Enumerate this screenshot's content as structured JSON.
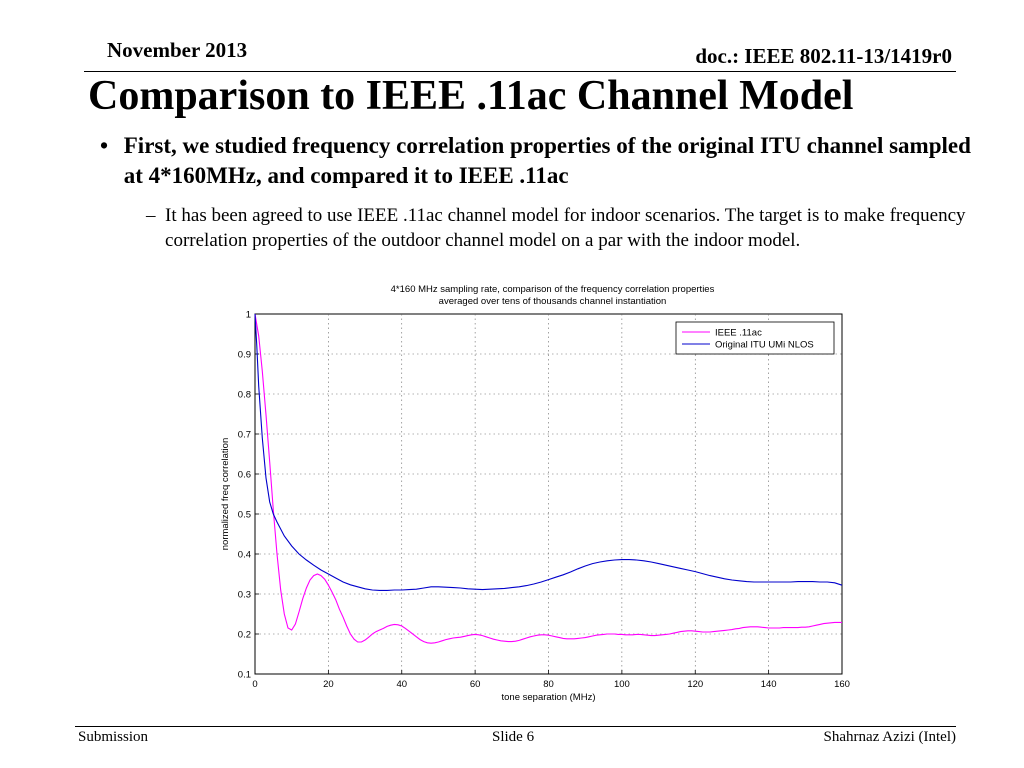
{
  "header": {
    "date": "November 2013",
    "doc": "doc.: IEEE 802.11-13/1419r0"
  },
  "title": "Comparison to IEEE .11ac Channel Model",
  "bullets": [
    {
      "marker": "•",
      "text": "First, we studied frequency correlation properties of the original ITU channel sampled at 4*160MHz, and compared it to IEEE .11ac",
      "sub": [
        {
          "marker": "–",
          "text": "It has been agreed to use IEEE .11ac channel model for indoor scenarios. The target is to make frequency correlation properties of the outdoor channel model on a par with the indoor model."
        }
      ]
    }
  ],
  "chart_data": {
    "type": "line",
    "title": "4*160 MHz sampling rate, comparison of the frequency correlation properties",
    "subtitle": "averaged over tens of thousands channel instantiation",
    "xlabel": "tone separation (MHz)",
    "ylabel": "normalized freq correlation",
    "xlim": [
      0,
      160
    ],
    "ylim": [
      0.1,
      1
    ],
    "x_ticks": [
      "0",
      "20",
      "40",
      "60",
      "80",
      "100",
      "120",
      "140",
      "160"
    ],
    "y_ticks": [
      "0.1",
      "0.2",
      "0.3",
      "0.4",
      "0.5",
      "0.6",
      "0.7",
      "0.8",
      "0.9",
      "1"
    ],
    "grid": true,
    "legend_position": "top-right",
    "series": [
      {
        "name": "IEEE .11ac",
        "color": "#ff00ff",
        "x": [
          0,
          1,
          2,
          3,
          4,
          5,
          6,
          7,
          8,
          9,
          10,
          11,
          12,
          13,
          14,
          15,
          16,
          17,
          18,
          19,
          20,
          21,
          22,
          23,
          24,
          25,
          26,
          27,
          28,
          29,
          30,
          31,
          32,
          33,
          34,
          35,
          36,
          37,
          38,
          39,
          40,
          41,
          42,
          43,
          44,
          45,
          46,
          47,
          48,
          49,
          50,
          51,
          52,
          53,
          54,
          55,
          56,
          57,
          58,
          59,
          60,
          61,
          62,
          63,
          64,
          65,
          66,
          67,
          68,
          69,
          70,
          71,
          72,
          73,
          74,
          75,
          76,
          77,
          78,
          79,
          80,
          81,
          82,
          83,
          84,
          85,
          86,
          87,
          88,
          89,
          90,
          91,
          92,
          93,
          94,
          95,
          96,
          97,
          98,
          99,
          100,
          101,
          102,
          103,
          104,
          105,
          106,
          107,
          108,
          109,
          110,
          111,
          112,
          113,
          114,
          115,
          116,
          117,
          118,
          119,
          120,
          121,
          122,
          123,
          124,
          125,
          126,
          127,
          128,
          129,
          130,
          131,
          132,
          133,
          134,
          135,
          136,
          137,
          138,
          139,
          140,
          141,
          142,
          143,
          144,
          145,
          146,
          147,
          148,
          149,
          150,
          151,
          152,
          153,
          154,
          155,
          156,
          157,
          158,
          159,
          160
        ],
        "y": [
          1.0,
          0.945,
          0.857,
          0.748,
          0.63,
          0.51,
          0.4,
          0.31,
          0.25,
          0.215,
          0.21,
          0.225,
          0.255,
          0.288,
          0.315,
          0.335,
          0.346,
          0.35,
          0.346,
          0.337,
          0.322,
          0.305,
          0.286,
          0.262,
          0.242,
          0.22,
          0.2,
          0.187,
          0.18,
          0.18,
          0.185,
          0.192,
          0.2,
          0.206,
          0.21,
          0.214,
          0.219,
          0.222,
          0.224,
          0.223,
          0.22,
          0.214,
          0.207,
          0.2,
          0.193,
          0.186,
          0.181,
          0.178,
          0.177,
          0.178,
          0.18,
          0.183,
          0.186,
          0.188,
          0.19,
          0.191,
          0.192,
          0.194,
          0.196,
          0.198,
          0.199,
          0.198,
          0.196,
          0.193,
          0.19,
          0.187,
          0.185,
          0.183,
          0.182,
          0.181,
          0.181,
          0.182,
          0.184,
          0.187,
          0.19,
          0.193,
          0.195,
          0.197,
          0.198,
          0.198,
          0.197,
          0.195,
          0.193,
          0.191,
          0.189,
          0.188,
          0.188,
          0.188,
          0.189,
          0.19,
          0.191,
          0.193,
          0.195,
          0.197,
          0.198,
          0.199,
          0.2,
          0.2,
          0.2,
          0.199,
          0.199,
          0.198,
          0.198,
          0.198,
          0.199,
          0.199,
          0.198,
          0.197,
          0.196,
          0.196,
          0.197,
          0.198,
          0.199,
          0.2,
          0.202,
          0.204,
          0.206,
          0.207,
          0.208,
          0.208,
          0.207,
          0.206,
          0.205,
          0.205,
          0.205,
          0.206,
          0.207,
          0.208,
          0.209,
          0.21,
          0.211,
          0.213,
          0.214,
          0.216,
          0.217,
          0.218,
          0.218,
          0.218,
          0.217,
          0.216,
          0.215,
          0.215,
          0.215,
          0.215,
          0.216,
          0.216,
          0.216,
          0.216,
          0.216,
          0.217,
          0.217,
          0.218,
          0.22,
          0.222,
          0.224,
          0.226,
          0.227,
          0.228,
          0.229,
          0.229,
          0.229
        ]
      },
      {
        "name": "Original ITU UMi NLOS",
        "color": "#0000cc",
        "x": [
          0,
          0.5,
          1,
          2,
          3,
          4,
          5,
          6,
          8,
          10,
          12,
          14,
          16,
          18,
          20,
          22,
          24,
          26,
          28,
          30,
          32,
          34,
          36,
          38,
          40,
          42,
          44,
          46,
          48,
          50,
          52,
          54,
          56,
          58,
          60,
          62,
          64,
          66,
          68,
          70,
          72,
          74,
          76,
          78,
          80,
          82,
          84,
          86,
          88,
          90,
          92,
          94,
          96,
          98,
          100,
          102,
          104,
          106,
          108,
          110,
          112,
          114,
          116,
          118,
          120,
          122,
          124,
          126,
          128,
          130,
          132,
          134,
          136,
          138,
          140,
          142,
          144,
          146,
          148,
          150,
          152,
          154,
          156,
          158,
          160
        ],
        "y": [
          1.0,
          0.92,
          0.82,
          0.69,
          0.59,
          0.53,
          0.5,
          0.48,
          0.445,
          0.42,
          0.4,
          0.385,
          0.372,
          0.36,
          0.35,
          0.34,
          0.33,
          0.323,
          0.318,
          0.313,
          0.31,
          0.309,
          0.309,
          0.31,
          0.31,
          0.311,
          0.312,
          0.315,
          0.318,
          0.318,
          0.317,
          0.316,
          0.315,
          0.313,
          0.312,
          0.311,
          0.312,
          0.313,
          0.314,
          0.316,
          0.318,
          0.321,
          0.325,
          0.33,
          0.336,
          0.342,
          0.348,
          0.355,
          0.363,
          0.37,
          0.376,
          0.38,
          0.383,
          0.385,
          0.386,
          0.386,
          0.385,
          0.383,
          0.38,
          0.376,
          0.372,
          0.368,
          0.364,
          0.36,
          0.356,
          0.351,
          0.346,
          0.342,
          0.338,
          0.335,
          0.333,
          0.331,
          0.33,
          0.33,
          0.33,
          0.33,
          0.33,
          0.33,
          0.331,
          0.331,
          0.331,
          0.33,
          0.33,
          0.328,
          0.322
        ]
      }
    ]
  },
  "footer": {
    "left": "Submission",
    "center": "Slide 6",
    "right": "Shahrnaz Azizi (Intel)"
  }
}
